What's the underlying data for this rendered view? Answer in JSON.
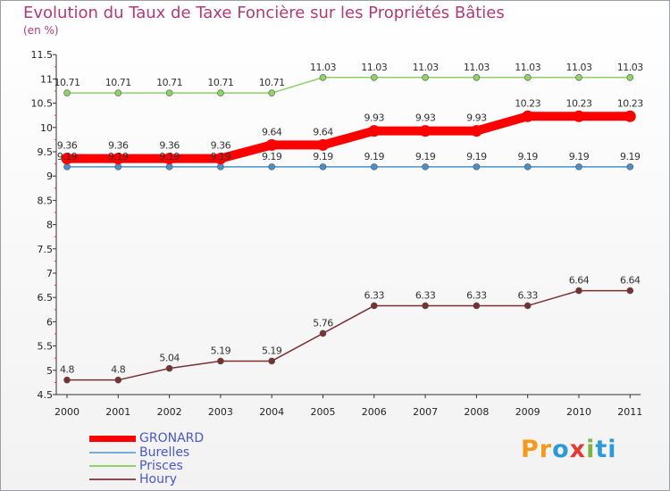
{
  "chart_data": {
    "type": "line",
    "title": "Evolution du Taux de Taxe Foncière sur les Propriétés Bâties",
    "ylabel": "(en %)",
    "xlabel": "",
    "categories": [
      "2000",
      "2001",
      "2002",
      "2003",
      "2004",
      "2005",
      "2006",
      "2007",
      "2008",
      "2009",
      "2010",
      "2011"
    ],
    "ylim": [
      4.5,
      11.5
    ],
    "yticks": [
      4.5,
      5,
      5.5,
      6,
      6.5,
      7,
      7.5,
      8,
      8.5,
      9,
      9.5,
      10,
      10.5,
      11,
      11.5
    ],
    "ytick_labels": [
      "4.5",
      "5",
      "5.5",
      "6",
      "6.5",
      "7",
      "7.5",
      "8",
      "8.5",
      "9",
      "9.5",
      "10",
      "10.5",
      "11",
      "11.5"
    ],
    "series": [
      {
        "name": "GRONARD",
        "color": "#ff0000",
        "values": [
          9.36,
          9.36,
          9.36,
          9.36,
          9.64,
          9.64,
          9.93,
          9.93,
          9.93,
          10.23,
          10.23,
          10.23
        ],
        "labels": [
          "9.36",
          "9.36",
          "9.36",
          "9.36",
          "9.64",
          "9.64",
          "9.93",
          "9.93",
          "9.93",
          "10.23",
          "10.23",
          "10.23"
        ]
      },
      {
        "name": "Burelles",
        "color": "#4a90c8",
        "values": [
          9.19,
          9.19,
          9.19,
          9.19,
          9.19,
          9.19,
          9.19,
          9.19,
          9.19,
          9.19,
          9.19,
          9.19
        ],
        "labels": [
          "9.19",
          "9.19",
          "9.19",
          "9.19",
          "9.19",
          "9.19",
          "9.19",
          "9.19",
          "9.19",
          "9.19",
          "9.19",
          "9.19"
        ]
      },
      {
        "name": "Prisces",
        "color": "#8fd16a",
        "values": [
          10.71,
          10.71,
          10.71,
          10.71,
          10.71,
          11.03,
          11.03,
          11.03,
          11.03,
          11.03,
          11.03,
          11.03
        ],
        "labels": [
          "10.71",
          "10.71",
          "10.71",
          "10.71",
          "10.71",
          "11.03",
          "11.03",
          "11.03",
          "11.03",
          "11.03",
          "11.03",
          "11.03"
        ]
      },
      {
        "name": "Houry",
        "color": "#7a3030",
        "values": [
          4.8,
          4.8,
          5.04,
          5.19,
          5.19,
          5.76,
          6.33,
          6.33,
          6.33,
          6.33,
          6.64,
          6.64
        ],
        "labels": [
          "4.8",
          "4.8",
          "5.04",
          "5.19",
          "5.19",
          "5.76",
          "6.33",
          "6.33",
          "6.33",
          "6.33",
          "6.64",
          "6.64"
        ]
      }
    ],
    "legend_position": "bottom-left",
    "grid": false
  },
  "legend": [
    {
      "label": "GRONARD",
      "color": "#ff0000"
    },
    {
      "label": "Burelles",
      "color": "#7aaad6"
    },
    {
      "label": "Prisces",
      "color": "#8fd16a"
    },
    {
      "label": "Houry",
      "color": "#8a4a4a"
    }
  ],
  "logo": {
    "p1": "Pr",
    "p2": "o",
    "p3": "x",
    "p4": "i",
    "p5": "ti"
  }
}
